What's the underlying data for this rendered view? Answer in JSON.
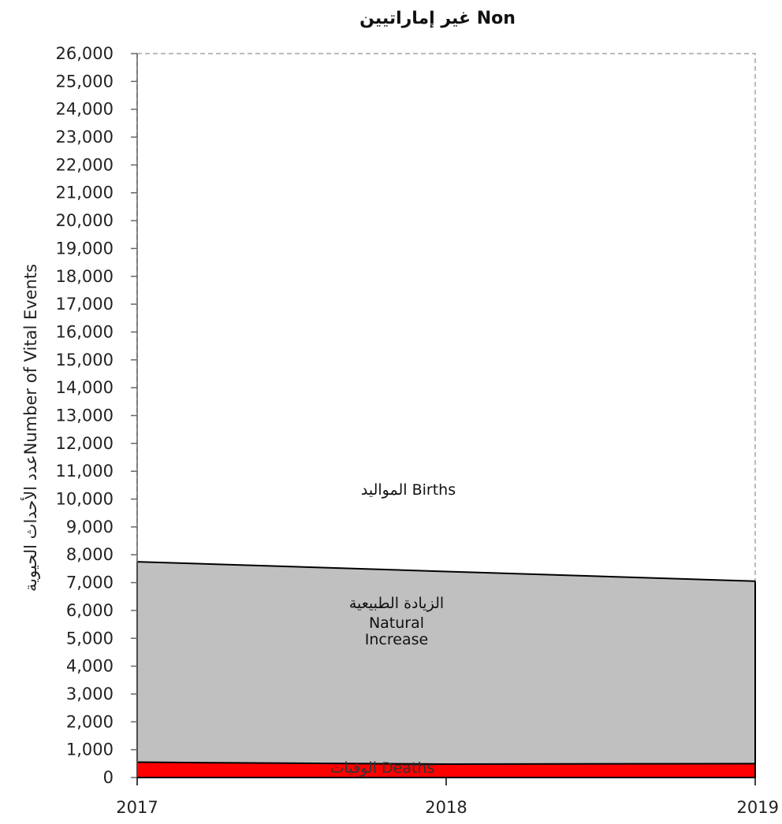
{
  "chart_data": {
    "type": "area",
    "title": "غير إماراتيين   Non",
    "ylabel": "عدد الأحداث الحيويةNumber of Vital Events",
    "xlabel": "",
    "x": [
      "2017",
      "2018",
      "2019"
    ],
    "ylim": [
      0,
      26000
    ],
    "yticks": [
      "0",
      "1,000",
      "2,000",
      "3,000",
      "4,000",
      "5,000",
      "6,000",
      "7,000",
      "8,000",
      "9,000",
      "10,000",
      "11,000",
      "12,000",
      "13,000",
      "14,000",
      "15,000",
      "16,000",
      "17,000",
      "18,000",
      "19,000",
      "20,000",
      "21,000",
      "22,000",
      "23,000",
      "24,000",
      "25,000",
      "26,000"
    ],
    "series": [
      {
        "name": "الوفيات Deaths",
        "values": [
          550,
          480,
          500
        ],
        "color": "#ff0000"
      },
      {
        "name": "Natural Increase",
        "label_ar": "الزيادة الطبيعية",
        "label_en_1": "Natural",
        "label_en_2": "Increase",
        "values": [
          7750,
          7400,
          7050
        ],
        "color": "#c0c0c0"
      },
      {
        "name": "Births",
        "label": "المواليد Births",
        "values": [
          26000,
          26000,
          26000
        ],
        "color": "#ffffff"
      }
    ],
    "grid": false,
    "border_color": "#bbbbbb"
  }
}
